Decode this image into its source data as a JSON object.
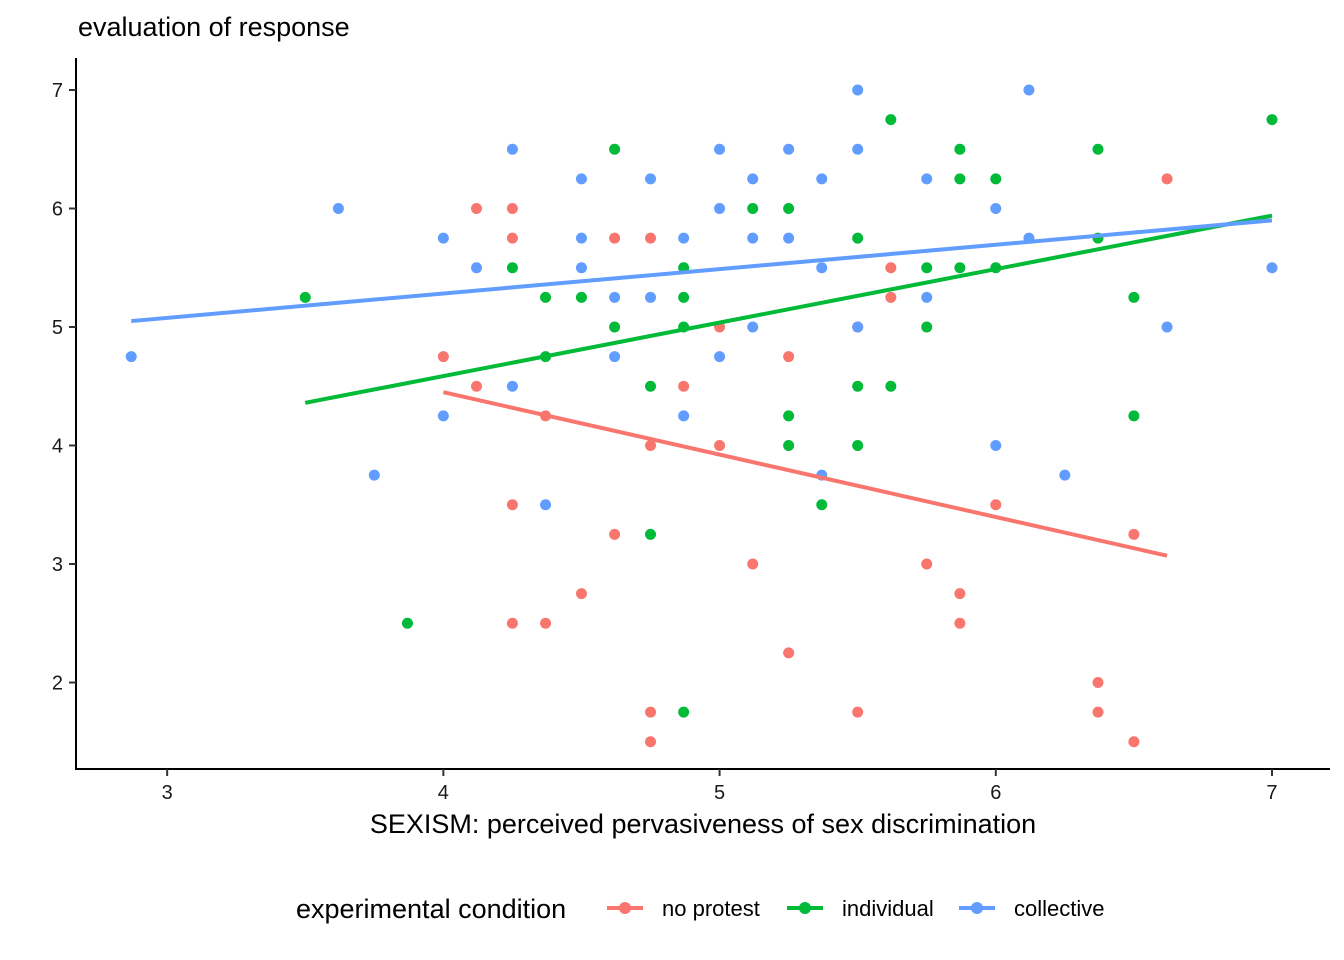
{
  "chart_data": {
    "type": "scatter",
    "title": "",
    "ylabel": "evaluation of response",
    "xlabel": "SEXISM: perceived pervasiveness of sex discrimination",
    "xlim": [
      2.67,
      7.21
    ],
    "ylim": [
      1.27,
      7.27
    ],
    "xticks": [
      3,
      4,
      5,
      6,
      7
    ],
    "yticks": [
      2,
      3,
      4,
      5,
      6,
      7
    ],
    "grid": false,
    "legend": {
      "title": "experimental condition",
      "position": "bottom"
    },
    "series": [
      {
        "name": "no protest",
        "color": "#F8766D",
        "points": [
          [
            4.0,
            4.75
          ],
          [
            4.12,
            6.0
          ],
          [
            4.12,
            4.5
          ],
          [
            4.25,
            6.0
          ],
          [
            4.25,
            5.75
          ],
          [
            4.25,
            3.5
          ],
          [
            4.25,
            2.5
          ],
          [
            4.37,
            4.25
          ],
          [
            4.37,
            2.5
          ],
          [
            4.5,
            2.75
          ],
          [
            4.62,
            5.75
          ],
          [
            4.62,
            3.25
          ],
          [
            4.75,
            5.75
          ],
          [
            4.75,
            4.0
          ],
          [
            4.75,
            1.75
          ],
          [
            4.75,
            1.5
          ],
          [
            4.87,
            4.5
          ],
          [
            5.0,
            5.0
          ],
          [
            5.0,
            4.0
          ],
          [
            5.12,
            3.0
          ],
          [
            5.25,
            4.75
          ],
          [
            5.25,
            2.25
          ],
          [
            5.5,
            5.0
          ],
          [
            5.5,
            1.75
          ],
          [
            5.62,
            5.5
          ],
          [
            5.62,
            5.25
          ],
          [
            5.75,
            3.0
          ],
          [
            5.87,
            2.75
          ],
          [
            5.87,
            2.5
          ],
          [
            6.0,
            3.5
          ],
          [
            6.37,
            2.0
          ],
          [
            6.37,
            1.75
          ],
          [
            6.5,
            3.25
          ],
          [
            6.5,
            1.5
          ],
          [
            6.62,
            6.25
          ]
        ],
        "fit": {
          "x": [
            4.0,
            6.62
          ],
          "y": [
            4.45,
            3.07
          ]
        }
      },
      {
        "name": "individual",
        "color": "#00BA38",
        "points": [
          [
            3.5,
            5.25
          ],
          [
            3.87,
            2.5
          ],
          [
            4.25,
            5.5
          ],
          [
            4.37,
            5.25
          ],
          [
            4.37,
            4.75
          ],
          [
            4.5,
            5.25
          ],
          [
            4.62,
            6.5
          ],
          [
            4.62,
            5.0
          ],
          [
            4.75,
            4.5
          ],
          [
            4.75,
            3.25
          ],
          [
            4.87,
            5.5
          ],
          [
            4.87,
            5.25
          ],
          [
            4.87,
            5.0
          ],
          [
            4.87,
            1.75
          ],
          [
            5.12,
            6.0
          ],
          [
            5.25,
            6.0
          ],
          [
            5.25,
            4.25
          ],
          [
            5.25,
            4.0
          ],
          [
            5.37,
            3.5
          ],
          [
            5.5,
            5.75
          ],
          [
            5.5,
            4.5
          ],
          [
            5.5,
            4.0
          ],
          [
            5.62,
            6.75
          ],
          [
            5.62,
            4.5
          ],
          [
            5.75,
            5.5
          ],
          [
            5.75,
            5.0
          ],
          [
            5.87,
            6.5
          ],
          [
            5.87,
            6.25
          ],
          [
            5.87,
            5.5
          ],
          [
            6.0,
            6.25
          ],
          [
            6.0,
            5.5
          ],
          [
            6.37,
            6.5
          ],
          [
            6.37,
            5.75
          ],
          [
            6.5,
            5.25
          ],
          [
            6.5,
            4.25
          ],
          [
            7.0,
            6.75
          ]
        ],
        "fit": {
          "x": [
            3.5,
            7.0
          ],
          "y": [
            4.36,
            5.94
          ]
        }
      },
      {
        "name": "collective",
        "color": "#619CFF",
        "points": [
          [
            2.87,
            4.75
          ],
          [
            3.62,
            6.0
          ],
          [
            3.75,
            3.75
          ],
          [
            4.0,
            5.75
          ],
          [
            4.0,
            4.25
          ],
          [
            4.12,
            5.5
          ],
          [
            4.25,
            6.5
          ],
          [
            4.25,
            4.5
          ],
          [
            4.37,
            3.5
          ],
          [
            4.5,
            6.25
          ],
          [
            4.5,
            5.75
          ],
          [
            4.5,
            5.5
          ],
          [
            4.62,
            5.25
          ],
          [
            4.62,
            4.75
          ],
          [
            4.75,
            6.25
          ],
          [
            4.75,
            5.25
          ],
          [
            4.87,
            5.75
          ],
          [
            4.87,
            4.25
          ],
          [
            5.0,
            6.5
          ],
          [
            5.0,
            6.0
          ],
          [
            5.0,
            4.75
          ],
          [
            5.12,
            6.25
          ],
          [
            5.12,
            5.75
          ],
          [
            5.12,
            5.0
          ],
          [
            5.25,
            6.5
          ],
          [
            5.25,
            5.75
          ],
          [
            5.37,
            6.25
          ],
          [
            5.37,
            5.5
          ],
          [
            5.37,
            3.75
          ],
          [
            5.5,
            7.0
          ],
          [
            5.5,
            6.5
          ],
          [
            5.5,
            5.0
          ],
          [
            5.75,
            6.25
          ],
          [
            5.75,
            5.25
          ],
          [
            6.0,
            6.0
          ],
          [
            6.0,
            4.0
          ],
          [
            6.12,
            7.0
          ],
          [
            6.12,
            5.75
          ],
          [
            6.25,
            3.75
          ],
          [
            6.62,
            5.0
          ],
          [
            7.0,
            5.5
          ]
        ],
        "fit": {
          "x": [
            2.87,
            7.0
          ],
          "y": [
            5.05,
            5.9
          ]
        }
      }
    ]
  }
}
